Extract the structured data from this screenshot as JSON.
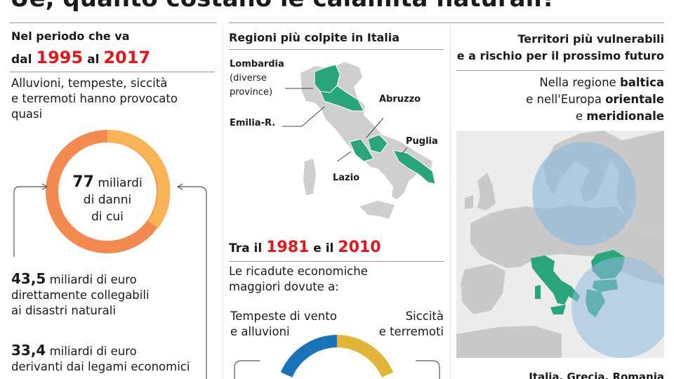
{
  "title": "Ue, quanto costano le calamità naturali?",
  "left": {
    "period_label": "Nel periodo che va",
    "period_from_prefix": "dal",
    "period_from": "1995",
    "period_to_prefix": "al",
    "period_to": "2017",
    "desc_line1": "Alluvioni, tempeste, siccità",
    "desc_line2": "e terremoti hanno provocato",
    "desc_line3": "quasi",
    "ring_value": "77",
    "ring_unit": "miliardi",
    "ring_line2": "di danni",
    "ring_line3": "di cui",
    "stat1_value": "43,5",
    "stat1_unit": "miliardi di euro",
    "stat1_line2": "direttamente collegabili",
    "stat1_line3": "ai disastri naturali",
    "stat2_value": "33,4",
    "stat2_unit": "miliardi di euro",
    "stat2_line2": "derivanti dai legami economici",
    "colors": {
      "ring_orange": "#f28a52",
      "ring_yellow": "#f9b457",
      "accent_red": "#e0171b"
    }
  },
  "middle": {
    "map_title": "Regioni più colpite in Italia",
    "regions": {
      "lombardia": "Lombardia",
      "lombardia_note1": "(diverse",
      "lombardia_note2": "province)",
      "emilia": "Emilia-R.",
      "abruzzo": "Abruzzo",
      "puglia": "Puglia",
      "lazio": "Lazio"
    },
    "period2_prefix": "Tra il",
    "period2_from": "1981",
    "period2_mid": "e il",
    "period2_to": "2010",
    "desc2_line1": "Le ricadute economiche",
    "desc2_line2": "maggiori dovute a:",
    "cause_left_line1": "Tempeste di vento",
    "cause_left_line2": "e alluvioni",
    "cause_right_line1": "Siccità",
    "cause_right_line2": "e terremoti",
    "colors": {
      "map_gray": "#cfcfcf",
      "region_green": "#2aa57a",
      "ring_blue": "#1a73b8",
      "ring_gold": "#e1b53a"
    }
  },
  "right": {
    "title_line1": "Territori più vulnerabili",
    "title_line2": "e a rischio per il prossimo futuro",
    "desc_line1_pre": "Nella regione",
    "desc_line1_bold": "baltica",
    "desc_line2_pre": "e nell'Europa",
    "desc_line2_bold": "orientale",
    "desc_line3_pre": "e",
    "desc_line3_bold": "meridionale",
    "bottom_label": "Italia, Grecia, Romania",
    "colors": {
      "sea": "#ececec",
      "land": "#c9c9c9",
      "risk_circle": "#8fbcdc",
      "risk_green": "#2aa57a"
    }
  }
}
